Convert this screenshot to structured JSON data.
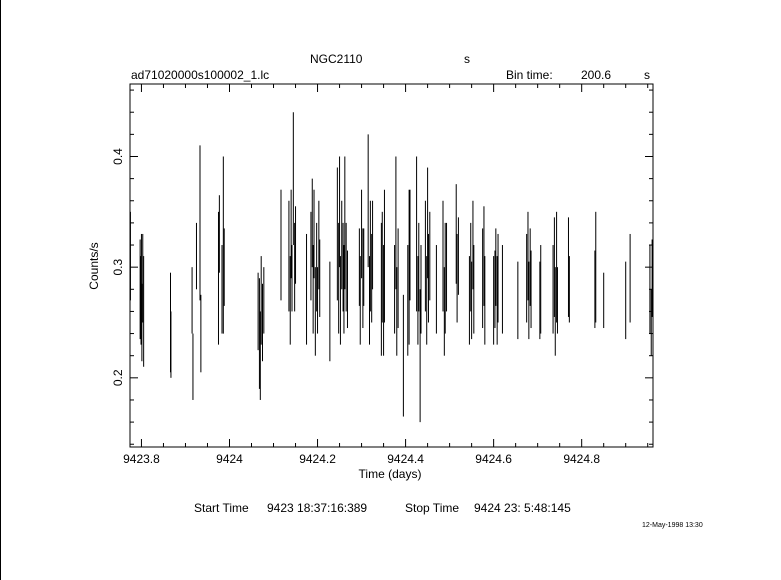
{
  "header": {
    "object": "NGC2110",
    "object_suffix": "s",
    "filename": "ad71020000s100002_1.lc",
    "bin_label": "Bin time:",
    "bin_value": "200.6",
    "bin_unit": "s"
  },
  "footer": {
    "start_label": "Start Time",
    "start_value": "9423 18:37:16:389",
    "stop_label": "Stop Time",
    "stop_value": "9424 23: 5:48:145",
    "date_stamp": "12-May-1998 13:30"
  },
  "chart_data": {
    "type": "scatter",
    "title": "NGC2110",
    "xlabel": "Time (days)",
    "ylabel": "Counts/s",
    "xlim": [
      9423.774,
      9424.962
    ],
    "ylim": [
      0.1375,
      0.4655
    ],
    "x_ticks": [
      9423.8,
      9424,
      9424.2,
      9424.4,
      9424.6,
      9424.8
    ],
    "x_tick_labels": [
      "9423.8",
      "9424",
      "9424.2",
      "9424.4",
      "9424.6",
      "9424.8"
    ],
    "y_ticks": [
      0.2,
      0.3,
      0.4
    ],
    "y_tick_labels": [
      "0.2",
      "0.3",
      "0.4"
    ],
    "grid": false,
    "series": [
      {
        "error_bars": true,
        "points": [
          [
            9423.775,
            0.31,
            0.04
          ],
          [
            9423.797,
            0.28,
            0.045
          ],
          [
            9423.799,
            0.27,
            0.04
          ],
          [
            9423.8,
            0.3,
            0.03
          ],
          [
            9423.801,
            0.25,
            0.035
          ],
          [
            9423.803,
            0.29,
            0.04
          ],
          [
            9423.805,
            0.26,
            0.05
          ],
          [
            9423.866,
            0.25,
            0.045
          ],
          [
            9423.867,
            0.23,
            0.03
          ],
          [
            9423.915,
            0.27,
            0.03
          ],
          [
            9423.917,
            0.21,
            0.03
          ],
          [
            9423.925,
            0.31,
            0.03
          ],
          [
            9423.933,
            0.34,
            0.07
          ],
          [
            9423.935,
            0.24,
            0.035
          ],
          [
            9423.975,
            0.29,
            0.06
          ],
          [
            9423.977,
            0.33,
            0.035
          ],
          [
            9423.983,
            0.28,
            0.04
          ],
          [
            9423.986,
            0.32,
            0.08
          ],
          [
            9423.988,
            0.3,
            0.035
          ],
          [
            9424.065,
            0.26,
            0.035
          ],
          [
            9424.068,
            0.24,
            0.05
          ],
          [
            9424.07,
            0.22,
            0.04
          ],
          [
            9424.072,
            0.27,
            0.04
          ],
          [
            9424.075,
            0.25,
            0.035
          ],
          [
            9424.078,
            0.27,
            0.03
          ],
          [
            9424.117,
            0.32,
            0.05
          ],
          [
            9424.135,
            0.31,
            0.05
          ],
          [
            9424.138,
            0.27,
            0.04
          ],
          [
            9424.14,
            0.33,
            0.04
          ],
          [
            9424.142,
            0.29,
            0.03
          ],
          [
            9424.145,
            0.38,
            0.06
          ],
          [
            9424.148,
            0.3,
            0.04
          ],
          [
            9424.15,
            0.32,
            0.035
          ],
          [
            9424.175,
            0.28,
            0.05
          ],
          [
            9424.185,
            0.31,
            0.04
          ],
          [
            9424.188,
            0.34,
            0.04
          ],
          [
            9424.19,
            0.28,
            0.04
          ],
          [
            9424.192,
            0.33,
            0.04
          ],
          [
            9424.195,
            0.26,
            0.04
          ],
          [
            9424.198,
            0.3,
            0.04
          ],
          [
            9424.2,
            0.27,
            0.03
          ],
          [
            9424.203,
            0.32,
            0.04
          ],
          [
            9424.205,
            0.29,
            0.035
          ],
          [
            9424.228,
            0.26,
            0.045
          ],
          [
            9424.245,
            0.33,
            0.06
          ],
          [
            9424.248,
            0.29,
            0.05
          ],
          [
            9424.25,
            0.35,
            0.05
          ],
          [
            9424.252,
            0.27,
            0.04
          ],
          [
            9424.255,
            0.32,
            0.04
          ],
          [
            9424.258,
            0.3,
            0.04
          ],
          [
            9424.26,
            0.28,
            0.04
          ],
          [
            9424.262,
            0.34,
            0.06
          ],
          [
            9424.265,
            0.3,
            0.04
          ],
          [
            9424.268,
            0.28,
            0.035
          ],
          [
            9424.295,
            0.3,
            0.035
          ],
          [
            9424.297,
            0.27,
            0.04
          ],
          [
            9424.3,
            0.33,
            0.04
          ],
          [
            9424.303,
            0.29,
            0.045
          ],
          [
            9424.305,
            0.3,
            0.035
          ],
          [
            9424.315,
            0.36,
            0.06
          ],
          [
            9424.318,
            0.27,
            0.04
          ],
          [
            9424.32,
            0.31,
            0.05
          ],
          [
            9424.323,
            0.29,
            0.04
          ],
          [
            9424.325,
            0.32,
            0.04
          ],
          [
            9424.345,
            0.28,
            0.06
          ],
          [
            9424.347,
            0.3,
            0.05
          ],
          [
            9424.35,
            0.27,
            0.05
          ],
          [
            9424.352,
            0.31,
            0.06
          ],
          [
            9424.375,
            0.28,
            0.04
          ],
          [
            9424.378,
            0.34,
            0.06
          ],
          [
            9424.38,
            0.26,
            0.04
          ],
          [
            9424.383,
            0.29,
            0.045
          ],
          [
            9424.395,
            0.22,
            0.055
          ],
          [
            9424.405,
            0.27,
            0.05
          ],
          [
            9424.408,
            0.3,
            0.07
          ],
          [
            9424.41,
            0.32,
            0.05
          ],
          [
            9424.425,
            0.33,
            0.07
          ],
          [
            9424.428,
            0.27,
            0.04
          ],
          [
            9424.43,
            0.3,
            0.04
          ],
          [
            9424.433,
            0.22,
            0.06
          ],
          [
            9424.435,
            0.28,
            0.04
          ],
          [
            9424.445,
            0.31,
            0.05
          ],
          [
            9424.448,
            0.27,
            0.04
          ],
          [
            9424.45,
            0.34,
            0.05
          ],
          [
            9424.452,
            0.29,
            0.04
          ],
          [
            9424.455,
            0.31,
            0.04
          ],
          [
            9424.47,
            0.28,
            0.04
          ],
          [
            9424.485,
            0.31,
            0.05
          ],
          [
            9424.488,
            0.26,
            0.04
          ],
          [
            9424.49,
            0.29,
            0.05
          ],
          [
            9424.493,
            0.3,
            0.04
          ],
          [
            9424.515,
            0.33,
            0.045
          ],
          [
            9424.517,
            0.29,
            0.04
          ],
          [
            9424.52,
            0.31,
            0.035
          ],
          [
            9424.545,
            0.27,
            0.04
          ],
          [
            9424.548,
            0.3,
            0.04
          ],
          [
            9424.55,
            0.27,
            0.035
          ],
          [
            9424.553,
            0.32,
            0.04
          ],
          [
            9424.555,
            0.28,
            0.04
          ],
          [
            9424.575,
            0.29,
            0.045
          ],
          [
            9424.578,
            0.31,
            0.045
          ],
          [
            9424.58,
            0.27,
            0.04
          ],
          [
            9424.6,
            0.27,
            0.04
          ],
          [
            9424.603,
            0.28,
            0.035
          ],
          [
            9424.605,
            0.3,
            0.035
          ],
          [
            9424.608,
            0.27,
            0.04
          ],
          [
            9424.61,
            0.29,
            0.04
          ],
          [
            9424.62,
            0.28,
            0.04
          ],
          [
            9424.655,
            0.27,
            0.035
          ],
          [
            9424.675,
            0.29,
            0.04
          ],
          [
            9424.678,
            0.31,
            0.04
          ],
          [
            9424.68,
            0.27,
            0.035
          ],
          [
            9424.683,
            0.3,
            0.035
          ],
          [
            9424.685,
            0.28,
            0.035
          ],
          [
            9424.705,
            0.27,
            0.035
          ],
          [
            9424.707,
            0.28,
            0.04
          ],
          [
            9424.735,
            0.28,
            0.04
          ],
          [
            9424.738,
            0.3,
            0.045
          ],
          [
            9424.74,
            0.26,
            0.04
          ],
          [
            9424.743,
            0.3,
            0.05
          ],
          [
            9424.745,
            0.27,
            0.03
          ],
          [
            9424.77,
            0.3,
            0.045
          ],
          [
            9424.772,
            0.28,
            0.03
          ],
          [
            9424.83,
            0.28,
            0.035
          ],
          [
            9424.832,
            0.3,
            0.05
          ],
          [
            9424.85,
            0.27,
            0.025
          ],
          [
            9424.9,
            0.27,
            0.035
          ],
          [
            9424.91,
            0.29,
            0.04
          ],
          [
            9424.955,
            0.28,
            0.04
          ],
          [
            9424.958,
            0.25,
            0.03
          ],
          [
            9424.96,
            0.29,
            0.035
          ]
        ]
      }
    ]
  }
}
